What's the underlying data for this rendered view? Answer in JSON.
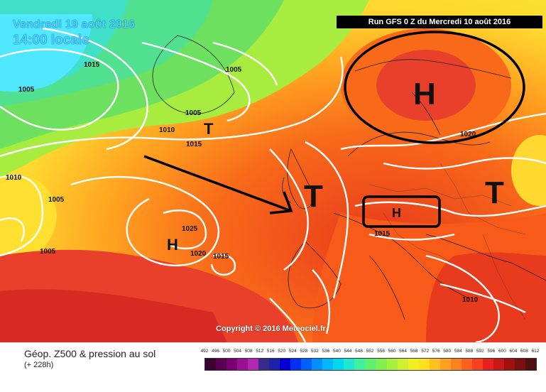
{
  "header": {
    "date": "Vendredi 19 août 2016",
    "time": "14:00 locale",
    "run": "Run GFS 0 Z du Mercredi 10 août 2016"
  },
  "copyright": "Copyright © 2016 Meteociel.fr",
  "footer": {
    "title": "Géop. Z500 & pression au sol",
    "subtitle": "(+ 228h)"
  },
  "isobar_labels": [
    "1015",
    "1005",
    "1005",
    "1010",
    "1015",
    "1005",
    "1010",
    "1005",
    "1005",
    "1025",
    "1020",
    "1015",
    "1015",
    "1020",
    "1010"
  ],
  "symbols": [
    "H",
    "T",
    "T",
    "H",
    "H",
    "T"
  ],
  "scale": {
    "values": [
      "492",
      "496",
      "500",
      "504",
      "508",
      "512",
      "516",
      "520",
      "524",
      "528",
      "532",
      "536",
      "540",
      "544",
      "548",
      "552",
      "556",
      "560",
      "564",
      "568",
      "572",
      "576",
      "580",
      "584",
      "588",
      "592",
      "596",
      "600",
      "604",
      "608",
      "612"
    ],
    "colors": [
      "#3d0033",
      "#5a0050",
      "#7a0070",
      "#9a1094",
      "#b028b0",
      "#3a2a8a",
      "#2020a8",
      "#0000d0",
      "#0030f0",
      "#0060ff",
      "#0090ff",
      "#00b8ff",
      "#00d8f0",
      "#20e8d0",
      "#40f0a0",
      "#60f070",
      "#80f050",
      "#a8f040",
      "#d0f030",
      "#f0f020",
      "#ffe020",
      "#ffc020",
      "#ffa020",
      "#ff8020",
      "#ff6020",
      "#f84020",
      "#e82020",
      "#c81818",
      "#a01010",
      "#781010",
      "#501010"
    ]
  }
}
